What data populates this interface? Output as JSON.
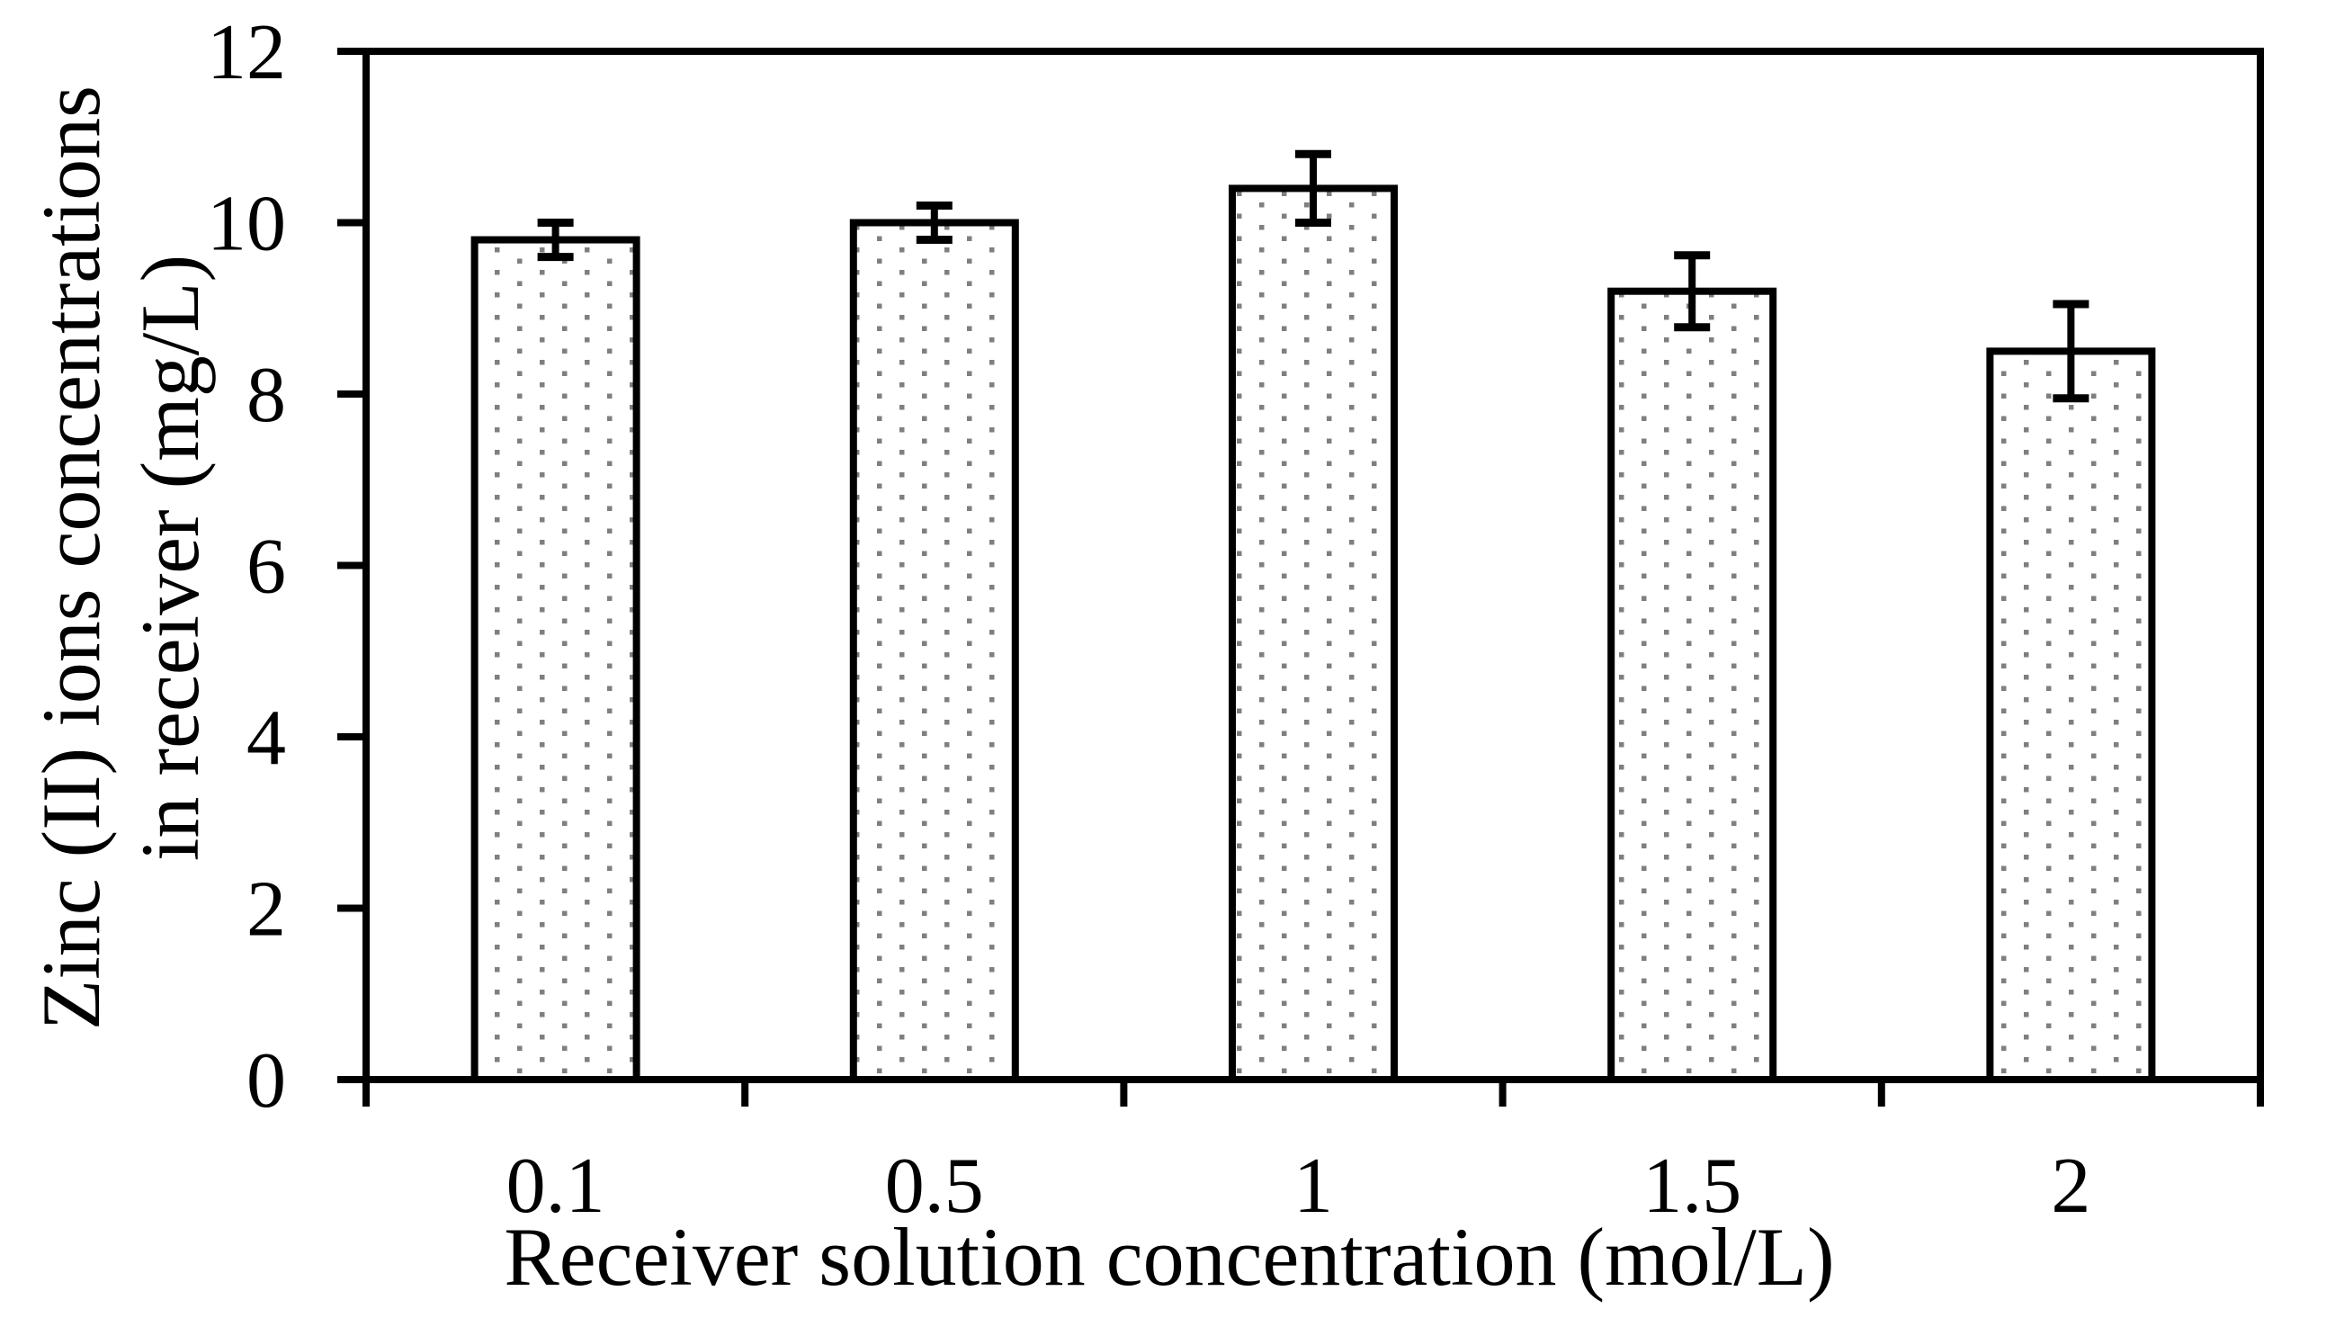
{
  "chart_data": {
    "type": "bar",
    "categories": [
      "0.1",
      "0.5",
      "1",
      "1.5",
      "2"
    ],
    "values": [
      9.8,
      10.0,
      10.4,
      9.2,
      8.5
    ],
    "error_bars": [
      0.2,
      0.2,
      0.4,
      0.42,
      0.55
    ],
    "xlabel": "Receiver solution concentration (mol/L)",
    "ylabel_lines": [
      "Zinc (II) ions concentrations",
      "in receiver (mg/L)"
    ],
    "ylim": [
      0,
      12
    ],
    "yticks": [
      0,
      2,
      4,
      6,
      8,
      10,
      12
    ],
    "grid": false,
    "legend": false,
    "style": {
      "background": "#ffffff",
      "bar_fill": "#ffffff",
      "bar_pattern": "gray-square-dots",
      "dot_color": "#7f7f7f",
      "line_color": "#000000"
    }
  }
}
